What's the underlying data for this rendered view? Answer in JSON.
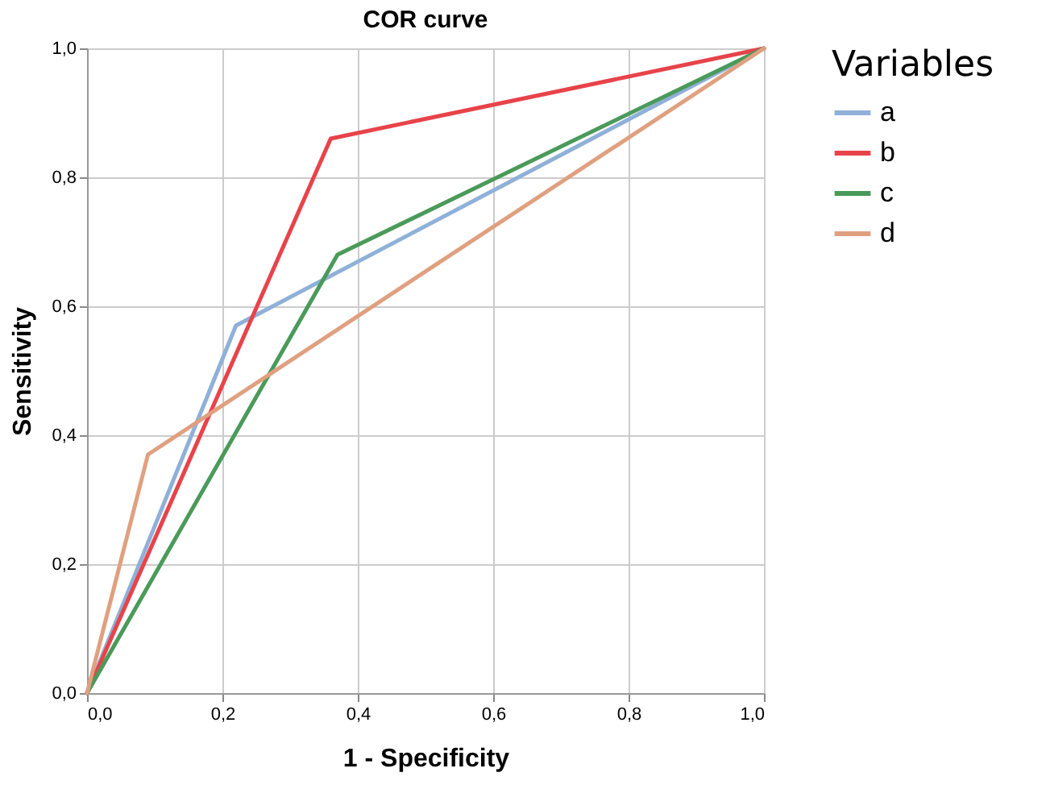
{
  "chart_data": {
    "type": "line",
    "title": "COR curve",
    "xlabel": "1 - Specificity",
    "ylabel": "Sensitivity",
    "legend_title": "Variables",
    "legend": "right",
    "grid": true,
    "marker": "none",
    "line_style": "solid",
    "xlim": [
      0,
      1
    ],
    "ylim": [
      0,
      1
    ],
    "xticks": [
      {
        "value": 0,
        "label": "0,0"
      },
      {
        "value": 0.2,
        "label": "0,2"
      },
      {
        "value": 0.4,
        "label": "0,4"
      },
      {
        "value": 0.6,
        "label": "0,6"
      },
      {
        "value": 0.8,
        "label": "0,8"
      },
      {
        "value": 1,
        "label": "1,0"
      }
    ],
    "yticks": [
      {
        "value": 0,
        "label": "0,0"
      },
      {
        "value": 0.2,
        "label": "0,2"
      },
      {
        "value": 0.4,
        "label": "0,4"
      },
      {
        "value": 0.6,
        "label": "0,6"
      },
      {
        "value": 0.8,
        "label": "0,8"
      },
      {
        "value": 1,
        "label": "1,0"
      }
    ],
    "series": [
      {
        "name": "a",
        "color": "#8fb0d8",
        "x": [
          0,
          0.22,
          1
        ],
        "values": [
          0,
          0.57,
          1
        ]
      },
      {
        "name": "b",
        "color": "#e8434a",
        "x": [
          0,
          0.36,
          1
        ],
        "values": [
          0,
          0.86,
          1
        ]
      },
      {
        "name": "c",
        "color": "#4a9a5a",
        "x": [
          0,
          0.37,
          1
        ],
        "values": [
          0,
          0.68,
          1
        ]
      },
      {
        "name": "d",
        "color": "#e0a080",
        "x": [
          0,
          0.09,
          1
        ],
        "values": [
          0,
          0.37,
          1
        ]
      }
    ]
  }
}
